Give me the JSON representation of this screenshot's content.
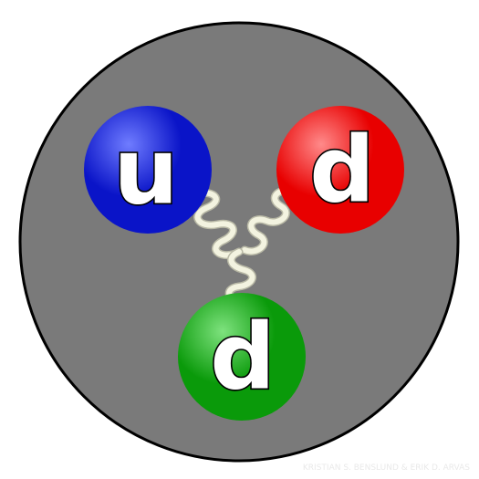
{
  "diagram": {
    "background_color": "#ffffff",
    "particle": {
      "fill": "#7a7a7a",
      "stroke": "#000000"
    },
    "gluon": {
      "color": "#f3f3e0",
      "outline": "#b9b9a6"
    },
    "quarks": [
      {
        "id": "up",
        "label": "u",
        "color": "#0a14c8",
        "highlight": "#6f7cff"
      },
      {
        "id": "down-1",
        "label": "d",
        "color": "#e80000",
        "highlight": "#ff8a8a"
      },
      {
        "id": "down-2",
        "label": "d",
        "color": "#0a9a0a",
        "highlight": "#7ee27e"
      }
    ],
    "credit": "KRISTIAN S. BENSLUND & ERIK D. ARVAS"
  }
}
